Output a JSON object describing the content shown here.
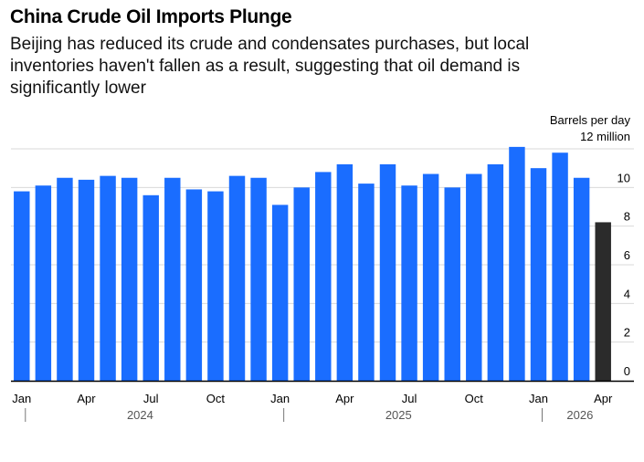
{
  "header": {
    "title": "China Crude Oil Imports Plunge",
    "subtitle": "Beijing has reduced its crude and condensates purchases, but local inventories haven't fallen as a result, suggesting that oil demand is significantly lower"
  },
  "chart_data": {
    "type": "bar",
    "title": "China Crude Oil Imports Plunge",
    "subtitle": "Beijing has reduced its crude and condensates purchases, but local inventories haven't fallen as a result, suggesting that oil demand is significantly lower",
    "unit_label": [
      "Barrels per day",
      "12 million"
    ],
    "categories": [
      "2024-01",
      "2024-02",
      "2024-03",
      "2024-04",
      "2024-05",
      "2024-06",
      "2024-07",
      "2024-08",
      "2024-09",
      "2024-10",
      "2024-11",
      "2024-12",
      "2025-01",
      "2025-02",
      "2025-03",
      "2025-04",
      "2025-05",
      "2025-06",
      "2025-07",
      "2025-08",
      "2025-09",
      "2025-10",
      "2025-11",
      "2025-12",
      "2026-01",
      "2026-02",
      "2026-03",
      "2026-04"
    ],
    "values": [
      9.8,
      10.1,
      10.5,
      10.4,
      10.6,
      10.5,
      9.6,
      10.5,
      9.9,
      9.8,
      10.6,
      10.5,
      9.1,
      10.0,
      10.8,
      11.2,
      10.2,
      11.2,
      10.1,
      10.7,
      10.0,
      10.7,
      11.2,
      12.1,
      11.0,
      11.8,
      10.5,
      8.2
    ],
    "highlight_index": 27,
    "colors": {
      "bar": "#1a6dff",
      "highlight": "#2b2b2b",
      "grid": "#d9d9d9",
      "axis": "#000000"
    },
    "ylim": [
      0,
      12
    ],
    "yticks": [
      {
        "value": 0,
        "label": "0"
      },
      {
        "value": 2,
        "label": "2"
      },
      {
        "value": 4,
        "label": "4"
      },
      {
        "value": 6,
        "label": "6"
      },
      {
        "value": 8,
        "label": "8"
      },
      {
        "value": 10,
        "label": "10"
      }
    ],
    "xticks": [
      {
        "index": 0,
        "label": "Jan"
      },
      {
        "index": 3,
        "label": "Apr"
      },
      {
        "index": 6,
        "label": "Jul"
      },
      {
        "index": 9,
        "label": "Oct"
      },
      {
        "index": 12,
        "label": "Jan"
      },
      {
        "index": 15,
        "label": "Apr"
      },
      {
        "index": 18,
        "label": "Jul"
      },
      {
        "index": 21,
        "label": "Oct"
      },
      {
        "index": 24,
        "label": "Jan"
      },
      {
        "index": 27,
        "label": "Apr"
      }
    ],
    "years": [
      {
        "label": "2024",
        "start": 0,
        "end": 11
      },
      {
        "label": "2025",
        "start": 12,
        "end": 23
      },
      {
        "label": "2026",
        "start": 24,
        "end": 27
      }
    ],
    "grid": true,
    "y_axis_position": "right"
  }
}
